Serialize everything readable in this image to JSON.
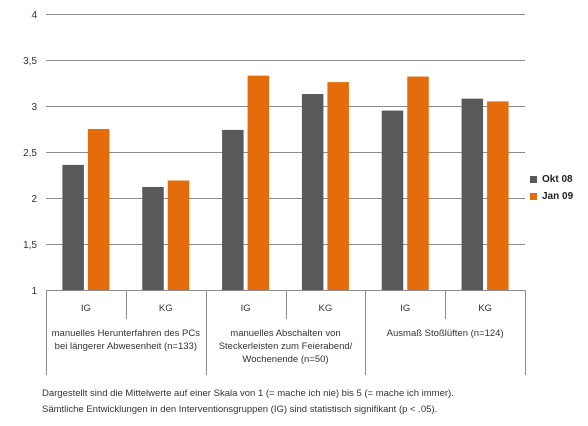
{
  "chart_data": {
    "type": "bar",
    "ylim": [
      1,
      4
    ],
    "yticks": [
      "1",
      "1,5",
      "2",
      "2,5",
      "3",
      "3,5",
      "4"
    ],
    "ytick_values": [
      1,
      1.5,
      2,
      2.5,
      3,
      3.5,
      4
    ],
    "grid": true,
    "legend_position": "right",
    "categories": [
      "IG",
      "KG",
      "IG",
      "KG",
      "IG",
      "KG"
    ],
    "groups": [
      {
        "label_lines": [
          "manuelles Herunterfahren des PCs",
          "bei längerer Abwesenheit (n=133)"
        ]
      },
      {
        "label_lines": [
          "manuelles Abschalten von",
          "Steckerleisten zum Feierabend/",
          "Wochenende (n=50)"
        ]
      },
      {
        "label_lines": [
          "Ausmaß Stoßlüften (n=124)"
        ]
      }
    ],
    "series": [
      {
        "name": "Okt 08",
        "color": "#595959",
        "values": [
          2.36,
          2.12,
          2.74,
          3.13,
          2.95,
          3.08
        ]
      },
      {
        "name": "Jan 09",
        "color": "#E46C0A",
        "values": [
          2.75,
          2.19,
          3.33,
          3.26,
          3.32,
          3.05
        ]
      }
    ]
  },
  "notes": [
    "Dargestellt sind die Mittelwerte auf einer Skala von 1 (= mache ich nie) bis 5 (= mache ich immer).",
    "Sämtliche Entwicklungen in den Interventionsgruppen (IG) sind statistisch signifikant (p < .05)."
  ]
}
